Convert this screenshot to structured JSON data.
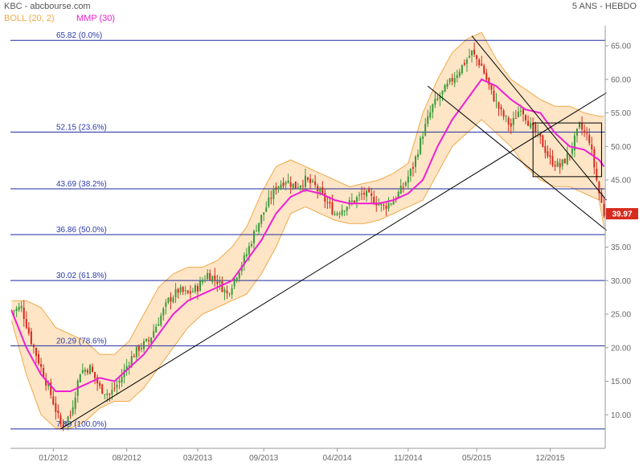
{
  "header": {
    "title": "KBC - abcbourse.com",
    "period": "5 ANS - HEBDO",
    "legend_boll": "BOLL (20, 2)",
    "legend_mmp": "MMP (30)"
  },
  "colors": {
    "boll_fill": "#fde5c6",
    "boll_line": "#f0a94a",
    "mmp": "#ee1fd4",
    "fib": "#1f2a9e",
    "up": "#3a9a3a",
    "down": "#d42a1e",
    "last_bg": "#d62b1e"
  },
  "chart_data": {
    "type": "line",
    "title": "KBC - abcbourse.com",
    "subtitle": "5 ANS - HEBDO",
    "ylim": [
      5,
      68
    ],
    "y_ticks": [
      10,
      15,
      20,
      25,
      30,
      35,
      40,
      45,
      50,
      55,
      60,
      65
    ],
    "x_tick_labels": [
      "01/2012",
      "08/2012",
      "03/2013",
      "09/2013",
      "04/2014",
      "11/2014",
      "05/2015",
      "12/2015"
    ],
    "x_tick_index": [
      17,
      47,
      76,
      103,
      133,
      162,
      190,
      220
    ],
    "last_value": "39.97",
    "fibonacci": [
      {
        "label": "65.82 (0.0%)",
        "value": 65.82
      },
      {
        "label": "52.15 (23.6%)",
        "value": 52.15
      },
      {
        "label": "43.69 (38.2%)",
        "value": 43.69
      },
      {
        "label": "36.86 (50.0%)",
        "value": 36.86
      },
      {
        "label": "30.02 (61.8%)",
        "value": 30.02
      },
      {
        "label": "20.29 (78.6%)",
        "value": 20.29
      },
      {
        "label": "7.89 (100.0%)",
        "value": 7.89
      }
    ],
    "close_anchors": [
      [
        0,
        25.5
      ],
      [
        4,
        26
      ],
      [
        8,
        21
      ],
      [
        12,
        17
      ],
      [
        16,
        13
      ],
      [
        20,
        8.5
      ],
      [
        24,
        10
      ],
      [
        28,
        16.5
      ],
      [
        32,
        17
      ],
      [
        36,
        14
      ],
      [
        40,
        13
      ],
      [
        44,
        15
      ],
      [
        48,
        18
      ],
      [
        52,
        20
      ],
      [
        56,
        21
      ],
      [
        60,
        24
      ],
      [
        64,
        27
      ],
      [
        68,
        28.5
      ],
      [
        72,
        28
      ],
      [
        76,
        29
      ],
      [
        80,
        31
      ],
      [
        84,
        30
      ],
      [
        88,
        28
      ],
      [
        92,
        31
      ],
      [
        96,
        34
      ],
      [
        100,
        38
      ],
      [
        104,
        41
      ],
      [
        108,
        44
      ],
      [
        112,
        45
      ],
      [
        116,
        44
      ],
      [
        120,
        45
      ],
      [
        124,
        44
      ],
      [
        128,
        42
      ],
      [
        132,
        40
      ],
      [
        136,
        41
      ],
      [
        140,
        42
      ],
      [
        144,
        43
      ],
      [
        148,
        42
      ],
      [
        152,
        41
      ],
      [
        156,
        42
      ],
      [
        160,
        44
      ],
      [
        164,
        47
      ],
      [
        168,
        52
      ],
      [
        172,
        56
      ],
      [
        176,
        58
      ],
      [
        180,
        60
      ],
      [
        184,
        62
      ],
      [
        188,
        64
      ],
      [
        192,
        62
      ],
      [
        196,
        58
      ],
      [
        200,
        55
      ],
      [
        204,
        53
      ],
      [
        208,
        56
      ],
      [
        212,
        53
      ],
      [
        216,
        51
      ],
      [
        220,
        48
      ],
      [
        224,
        47
      ],
      [
        228,
        49
      ],
      [
        232,
        53
      ],
      [
        236,
        51
      ],
      [
        240,
        43
      ],
      [
        242,
        39.97
      ]
    ],
    "mmp_anchors": [
      [
        0,
        25.5
      ],
      [
        6,
        20
      ],
      [
        12,
        16
      ],
      [
        18,
        13.5
      ],
      [
        24,
        13.5
      ],
      [
        30,
        14.5
      ],
      [
        36,
        15.5
      ],
      [
        42,
        15
      ],
      [
        48,
        17
      ],
      [
        54,
        19
      ],
      [
        60,
        22
      ],
      [
        66,
        25
      ],
      [
        72,
        27
      ],
      [
        78,
        28
      ],
      [
        84,
        29
      ],
      [
        90,
        30
      ],
      [
        96,
        33
      ],
      [
        102,
        36
      ],
      [
        108,
        40
      ],
      [
        114,
        42.5
      ],
      [
        120,
        43.5
      ],
      [
        126,
        43
      ],
      [
        132,
        42
      ],
      [
        138,
        41.5
      ],
      [
        144,
        41.5
      ],
      [
        150,
        41.5
      ],
      [
        156,
        42
      ],
      [
        162,
        43
      ],
      [
        168,
        45
      ],
      [
        174,
        50
      ],
      [
        180,
        54
      ],
      [
        186,
        57
      ],
      [
        192,
        60
      ],
      [
        198,
        59
      ],
      [
        204,
        57
      ],
      [
        210,
        55.5
      ],
      [
        216,
        55
      ],
      [
        222,
        52
      ],
      [
        228,
        50
      ],
      [
        234,
        49.5
      ],
      [
        240,
        48
      ],
      [
        242,
        47
      ]
    ],
    "boll_upper_anchors": [
      [
        0,
        27
      ],
      [
        6,
        27
      ],
      [
        12,
        26
      ],
      [
        18,
        23
      ],
      [
        24,
        22
      ],
      [
        30,
        21
      ],
      [
        36,
        19
      ],
      [
        42,
        19
      ],
      [
        48,
        21
      ],
      [
        54,
        25
      ],
      [
        60,
        29
      ],
      [
        66,
        31
      ],
      [
        72,
        32
      ],
      [
        78,
        32
      ],
      [
        84,
        33
      ],
      [
        90,
        35
      ],
      [
        96,
        38
      ],
      [
        102,
        43
      ],
      [
        108,
        47
      ],
      [
        114,
        48
      ],
      [
        120,
        47
      ],
      [
        126,
        46
      ],
      [
        132,
        45
      ],
      [
        138,
        44
      ],
      [
        144,
        44.5
      ],
      [
        150,
        45
      ],
      [
        156,
        46
      ],
      [
        162,
        47.5
      ],
      [
        168,
        55
      ],
      [
        174,
        60
      ],
      [
        180,
        64
      ],
      [
        186,
        66
      ],
      [
        192,
        67
      ],
      [
        198,
        63
      ],
      [
        204,
        60
      ],
      [
        210,
        58.5
      ],
      [
        216,
        57
      ],
      [
        222,
        56
      ],
      [
        228,
        56
      ],
      [
        234,
        55
      ],
      [
        240,
        54.5
      ],
      [
        242,
        54.5
      ]
    ],
    "boll_lower_anchors": [
      [
        0,
        24
      ],
      [
        6,
        16
      ],
      [
        12,
        10
      ],
      [
        18,
        8
      ],
      [
        24,
        8
      ],
      [
        30,
        9
      ],
      [
        36,
        11
      ],
      [
        42,
        12
      ],
      [
        48,
        12
      ],
      [
        54,
        14
      ],
      [
        60,
        17
      ],
      [
        66,
        20
      ],
      [
        72,
        23
      ],
      [
        78,
        25
      ],
      [
        84,
        26
      ],
      [
        90,
        27
      ],
      [
        96,
        28
      ],
      [
        102,
        31
      ],
      [
        108,
        35
      ],
      [
        114,
        40
      ],
      [
        120,
        41
      ],
      [
        126,
        40
      ],
      [
        132,
        39
      ],
      [
        138,
        38.5
      ],
      [
        144,
        38.5
      ],
      [
        150,
        39
      ],
      [
        156,
        40
      ],
      [
        162,
        41
      ],
      [
        168,
        42
      ],
      [
        174,
        46
      ],
      [
        180,
        50
      ],
      [
        186,
        52
      ],
      [
        192,
        54
      ],
      [
        198,
        52
      ],
      [
        204,
        50
      ],
      [
        210,
        47
      ],
      [
        216,
        45
      ],
      [
        222,
        44
      ],
      [
        228,
        44
      ],
      [
        234,
        43
      ],
      [
        240,
        42
      ],
      [
        242,
        38
      ]
    ],
    "trendlines": [
      {
        "name": "support",
        "from": [
          20,
          7.9
        ],
        "to": [
          243,
          58
        ]
      },
      {
        "name": "channel-upper",
        "from": [
          188,
          66.5
        ],
        "to": [
          243,
          42
        ]
      },
      {
        "name": "channel-lower",
        "from": [
          170,
          59
        ],
        "to": [
          243,
          37.5
        ]
      }
    ],
    "rectangle": {
      "x": [
        213,
        241
      ],
      "y": [
        45.5,
        53.5
      ]
    }
  }
}
